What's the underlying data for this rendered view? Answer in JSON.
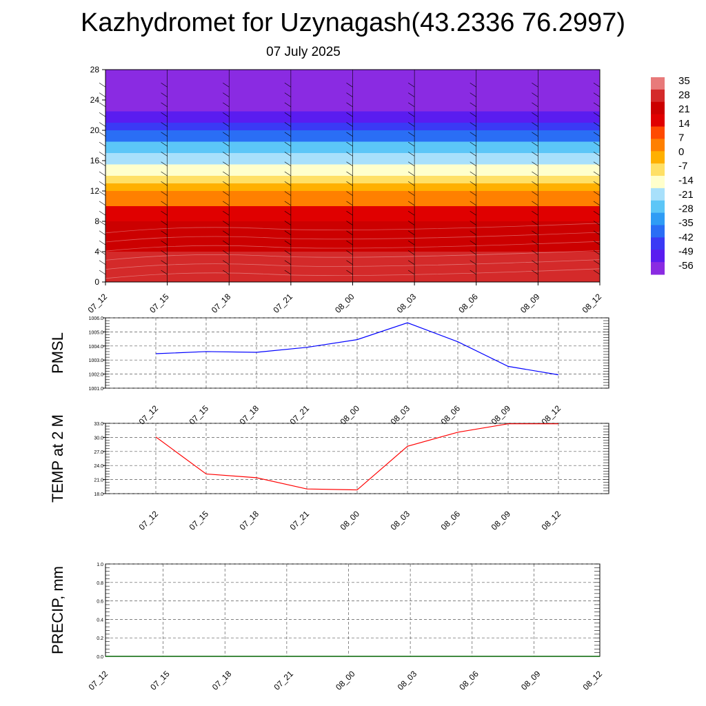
{
  "title": "Kazhydromet for Uzynagash(43.2336 76.2997)",
  "subtitle": "07 July 2025",
  "colors": {
    "pmsl_line": "#0000ff",
    "temp_line": "#ff0000",
    "precip_line": "#006400",
    "scale": [
      "#8a2be2",
      "#5a1cf0",
      "#3a3af5",
      "#2a6ef5",
      "#2f9cf5",
      "#5cc6f7",
      "#a8e0fb",
      "#ffffcc",
      "#ffe066",
      "#ffb000",
      "#ff8000",
      "#ff4a00",
      "#e00000",
      "#cc0000",
      "#d42a2a",
      "#e87a7a"
    ]
  },
  "chart_data": [
    {
      "type": "heatmap",
      "id": "cross-section",
      "x": [
        "07_12",
        "07_15",
        "07_18",
        "07_21",
        "08_00",
        "08_03",
        "08_06",
        "08_09",
        "08_12"
      ],
      "yticks": [
        "0",
        "4",
        "8",
        "12",
        "16",
        "20",
        "24",
        "28"
      ],
      "ylim": [
        0,
        28
      ],
      "colorbar_labels": [
        "35",
        "28",
        "21",
        "14",
        "7",
        "0",
        "-7",
        "-14",
        "-21",
        "-28",
        "-35",
        "-42",
        "-49",
        "-56"
      ],
      "bands": [
        {
          "from": 0,
          "to": 4,
          "value": 28
        },
        {
          "from": 4,
          "to": 8,
          "value": 21
        },
        {
          "from": 8,
          "to": 10,
          "value": 14
        },
        {
          "from": 10,
          "to": 12,
          "value": 7
        },
        {
          "from": 12,
          "to": 13,
          "value": 0
        },
        {
          "from": 13,
          "to": 14,
          "value": -7
        },
        {
          "from": 14,
          "to": 15.5,
          "value": -14
        },
        {
          "from": 15.5,
          "to": 17,
          "value": -21
        },
        {
          "from": 17,
          "to": 18.5,
          "value": -28
        },
        {
          "from": 18.5,
          "to": 20,
          "value": -35
        },
        {
          "from": 20,
          "to": 21,
          "value": -42
        },
        {
          "from": 21,
          "to": 22.5,
          "value": -49
        },
        {
          "from": 22.5,
          "to": 28,
          "value": -56
        }
      ]
    },
    {
      "type": "line",
      "id": "pmsl",
      "ylabel": "PMSL",
      "x": [
        "07_12",
        "07_15",
        "07_18",
        "07_21",
        "08_00",
        "08_03",
        "08_06",
        "08_09",
        "08_12"
      ],
      "yticks": [
        "1001.0",
        "1002.0",
        "1003.0",
        "1004.0",
        "1005.0",
        "1006.0"
      ],
      "ylim": [
        1001.0,
        1006.0
      ],
      "series": [
        {
          "values": [
            1003.45,
            1003.6,
            1003.55,
            1003.9,
            1004.45,
            1005.65,
            1004.3,
            1002.55,
            1001.95
          ]
        }
      ]
    },
    {
      "type": "line",
      "id": "temp",
      "ylabel": "TEMP at 2 M",
      "x": [
        "07_12",
        "07_15",
        "07_18",
        "07_21",
        "08_00",
        "08_03",
        "08_06",
        "08_09",
        "08_12"
      ],
      "yticks": [
        "18.0",
        "21.0",
        "24.0",
        "27.0",
        "30.0",
        "33.0"
      ],
      "ylim": [
        18.0,
        33.0
      ],
      "series": [
        {
          "values": [
            30.1,
            22.2,
            21.4,
            19.0,
            18.8,
            28.1,
            31.1,
            32.9,
            32.9
          ]
        }
      ]
    },
    {
      "type": "line",
      "id": "precip",
      "ylabel": "PRECIP, mm",
      "x": [
        "07_12",
        "07_15",
        "07_18",
        "07_21",
        "08_00",
        "08_03",
        "08_06",
        "08_09",
        "08_12"
      ],
      "yticks": [
        "0.0",
        "0.2",
        "0.4",
        "0.6",
        "0.8",
        "1.0"
      ],
      "ylim": [
        0.0,
        1.0
      ],
      "series": [
        {
          "values": [
            0,
            0,
            0,
            0,
            0,
            0,
            0,
            0,
            0
          ]
        }
      ]
    }
  ]
}
